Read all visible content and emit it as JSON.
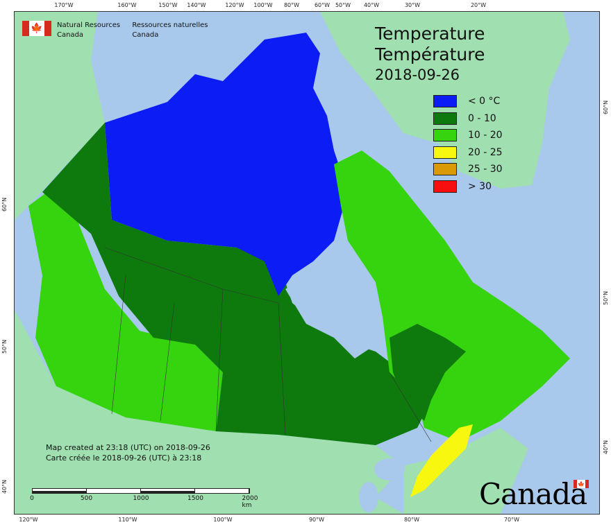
{
  "header": {
    "agency_en": "Natural Resources",
    "agency_en2": "Canada",
    "agency_fr": "Ressources naturelles",
    "agency_fr2": "Canada",
    "flag_icon": "maple-leaf-icon"
  },
  "title": {
    "line1": "Temperature",
    "line2": "Température",
    "date": "2018-09-26"
  },
  "legend": [
    {
      "label": "< 0 °C",
      "color": "#0b1cf5"
    },
    {
      "label": "0 - 10",
      "color": "#0e7a0d"
    },
    {
      "label": "10 - 20",
      "color": "#35d40e"
    },
    {
      "label": "20 - 25",
      "color": "#f7f710"
    },
    {
      "label": "25 - 30",
      "color": "#d99a05"
    },
    {
      "label": "> 30",
      "color": "#f70e0e"
    }
  ],
  "credits": {
    "en": "Map created at 23:18 (UTC) on 2018-09-26",
    "fr": "Carte créée le 2018-09-26 (UTC) à 23:18"
  },
  "scale": {
    "labels": [
      "0",
      "500",
      "1000",
      "1500",
      "2000 km"
    ]
  },
  "axis_ticks": {
    "top": [
      "170°W",
      "160°W",
      "150°W",
      "140°W",
      "120°W",
      "100°W",
      "80°W",
      "60°W",
      "50°W",
      "40°W",
      "30°W",
      "20°W"
    ],
    "bottom": [
      "120°W",
      "110°W",
      "100°W",
      "90°W",
      "80°W",
      "70°W"
    ],
    "left": [
      "60°N",
      "50°N",
      "40°N"
    ],
    "right": [
      "60°N",
      "50°N",
      "40°N"
    ]
  },
  "wordmark": "Canada",
  "colors": {
    "ocean": "#a9c9ec",
    "land_outside": "#9fdfb0",
    "cold": "#0b1cf5",
    "cool": "#0e7a0d",
    "mild": "#35d40e",
    "warm": "#f7f710"
  }
}
